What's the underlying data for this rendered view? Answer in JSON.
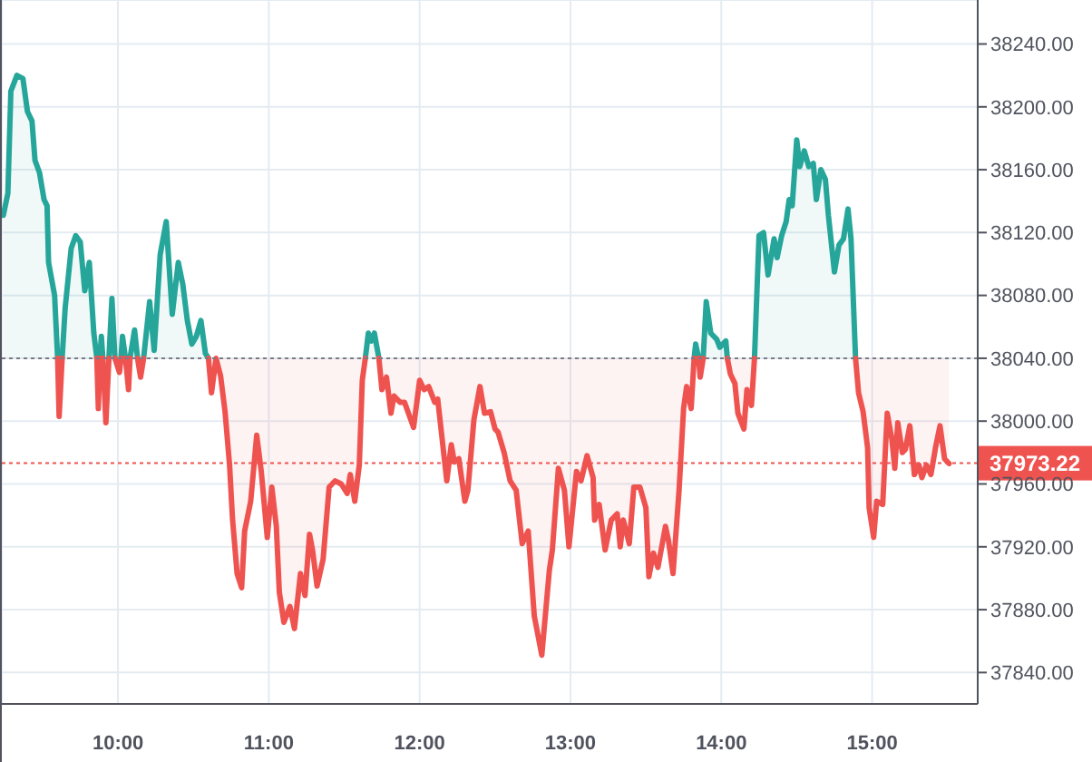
{
  "chart_data": {
    "type": "line",
    "x": [
      9.24,
      9.27,
      9.29,
      9.33,
      9.37,
      9.4,
      9.43,
      9.45,
      9.48,
      9.51,
      9.53,
      9.54,
      9.58,
      9.6,
      9.61,
      9.63,
      9.65,
      9.69,
      9.72,
      9.75,
      9.78,
      9.81,
      9.84,
      9.86,
      9.87,
      9.88,
      9.89,
      9.9,
      9.92,
      9.94,
      9.96,
      9.98,
      10.01,
      10.02,
      10.03,
      10.05,
      10.07,
      10.08,
      10.11,
      10.13,
      10.15,
      10.17,
      10.21,
      10.24,
      10.28,
      10.32,
      10.36,
      10.4,
      10.43,
      10.46,
      10.49,
      10.52,
      10.55,
      10.58,
      10.6,
      10.62,
      10.65,
      10.68,
      10.71,
      10.74,
      10.76,
      10.79,
      10.82,
      10.84,
      10.88,
      10.92,
      10.95,
      10.99,
      11.02,
      11.05,
      11.07,
      11.1,
      11.14,
      11.17,
      11.21,
      11.24,
      11.27,
      11.29,
      11.32,
      11.36,
      11.4,
      11.44,
      11.48,
      11.52,
      11.54,
      11.57,
      11.6,
      11.62,
      11.64,
      11.66,
      11.68,
      11.7,
      11.73,
      11.75,
      11.78,
      11.81,
      11.83,
      11.87,
      11.9,
      11.96,
      12.0,
      12.03,
      12.06,
      12.1,
      12.12,
      12.18,
      12.21,
      12.23,
      12.26,
      12.3,
      12.32,
      12.36,
      12.4,
      12.43,
      12.47,
      12.5,
      12.52,
      12.56,
      12.6,
      12.64,
      12.68,
      12.72,
      12.76,
      12.81,
      12.86,
      12.88,
      12.92,
      12.96,
      12.99,
      13.04,
      13.07,
      13.11,
      13.15,
      13.16,
      13.19,
      13.23,
      13.27,
      13.31,
      13.33,
      13.35,
      13.39,
      13.42,
      13.46,
      13.5,
      13.52,
      13.55,
      13.58,
      13.63,
      13.65,
      13.68,
      13.72,
      13.75,
      13.77,
      13.8,
      13.82,
      13.83,
      13.85,
      13.86,
      13.88,
      13.9,
      13.93,
      13.97,
      13.99,
      14.03,
      14.04,
      14.06,
      14.09,
      14.11,
      14.15,
      14.17,
      14.2,
      14.22,
      14.25,
      14.28,
      14.31,
      14.35,
      14.37,
      14.4,
      14.43,
      14.45,
      14.47,
      14.5,
      14.52,
      14.55,
      14.58,
      14.61,
      14.63,
      14.66,
      14.69,
      14.71,
      14.75,
      14.78,
      14.81,
      14.84,
      14.86,
      14.89,
      14.91,
      14.94,
      14.97,
      14.98,
      15.01,
      15.03,
      15.07,
      15.1,
      15.13,
      15.15,
      15.17,
      15.2,
      15.22,
      15.25,
      15.28,
      15.31,
      15.33,
      15.36,
      15.39,
      15.42,
      15.45,
      15.48,
      15.51
    ],
    "series": [
      {
        "color": "#26a69a",
        "values": [
          38131,
          38145,
          38210,
          38220,
          38218,
          38197,
          38191,
          38166,
          38158,
          38141,
          38137,
          38101,
          38080,
          38040,
          null,
          38040,
          38072,
          38110,
          38118,
          38114,
          38083,
          38101,
          38056,
          38040,
          null,
          38040,
          38054,
          38040,
          null,
          38040,
          38078,
          38040,
          null,
          38040,
          38054,
          38040,
          null,
          38040,
          38058,
          38040,
          null,
          38040,
          38076,
          38045,
          38106,
          38127,
          38068,
          38101,
          38087,
          38064,
          38049,
          38054,
          38064,
          38043,
          38040,
          null,
          null,
          null,
          null,
          null,
          null,
          null,
          null,
          null,
          null,
          null,
          null,
          null,
          null,
          null,
          null,
          null,
          null,
          null,
          null,
          null,
          null,
          null,
          null,
          null,
          null,
          null,
          null,
          null,
          null,
          null,
          null,
          null,
          38040,
          38056,
          38051,
          38056,
          38040,
          null,
          null,
          null,
          null,
          null,
          null,
          null,
          null,
          null,
          null,
          null,
          null,
          null,
          null,
          null,
          null,
          null,
          null,
          null,
          null,
          null,
          null,
          null,
          null,
          null,
          null,
          null,
          null,
          null,
          null,
          null,
          null,
          null,
          null,
          null,
          null,
          null,
          null,
          null,
          null,
          null,
          null,
          null,
          null,
          null,
          null,
          null,
          null,
          null,
          null,
          null,
          null,
          null,
          null,
          null,
          null,
          null,
          null,
          null,
          null,
          null,
          38040,
          38049,
          38040,
          null,
          38040,
          38076,
          38056,
          38052,
          38047,
          38051,
          38040,
          null,
          null,
          null,
          null,
          null,
          null,
          38040,
          38118,
          38120,
          38093,
          38116,
          38104,
          38118,
          38127,
          38141,
          38137,
          38179,
          38162,
          38172,
          38162,
          38164,
          38141,
          38160,
          38154,
          38131,
          38095,
          38112,
          38116,
          38135,
          38116,
          38040,
          null,
          null,
          null,
          null,
          null,
          null,
          null,
          null,
          null,
          null,
          null,
          null,
          null,
          null,
          null,
          null,
          null,
          null,
          null,
          null,
          null,
          null,
          null
        ],
        "lower": [
          38040,
          38040,
          38040,
          38040,
          38040,
          38040,
          38040,
          38040,
          38040,
          38040,
          38040,
          38040,
          38040,
          38040,
          null,
          38040,
          38040,
          38040,
          38040,
          38040,
          38040,
          38040,
          38040,
          38040,
          null,
          38040,
          38040,
          38040,
          null,
          38040,
          38040,
          38040,
          null,
          38040,
          38040,
          38040,
          null,
          38040,
          38040,
          38040,
          null,
          38040,
          38040,
          38040,
          38040,
          38040,
          38040,
          38040,
          38040,
          38040,
          38040,
          38040,
          38040,
          38040,
          38040,
          null,
          null,
          null,
          null,
          null,
          null,
          null,
          null,
          null,
          null,
          null,
          null,
          null,
          null,
          null,
          null,
          null,
          null,
          null,
          null,
          null,
          null,
          null,
          null,
          null,
          null,
          null,
          null,
          null,
          null,
          null,
          null,
          null,
          38040,
          38040,
          38040,
          38040,
          38040,
          null,
          null,
          null,
          null,
          null,
          null,
          null,
          null,
          null,
          null,
          null,
          null,
          null,
          null,
          null,
          null,
          null,
          null,
          null,
          null,
          null,
          null,
          null,
          null,
          null,
          null,
          null,
          null,
          null,
          null,
          null,
          null,
          null,
          null,
          null,
          null,
          null,
          null,
          null,
          null,
          null,
          null,
          null,
          null,
          null,
          null,
          null,
          null,
          null,
          null,
          null,
          null,
          null,
          null,
          null,
          null,
          null,
          null,
          null,
          null,
          null,
          null,
          null,
          null,
          null,
          38040,
          38040,
          38040,
          38040,
          38040,
          38040,
          38040,
          null,
          null,
          null,
          null,
          null,
          null,
          38040,
          38040,
          38040,
          38040,
          38040,
          38040,
          38040,
          38040,
          38040,
          38040,
          38040,
          38040,
          38040,
          38040,
          38040,
          38040,
          38040,
          38040,
          38040,
          38040,
          38040,
          38040,
          38040,
          38040,
          38040,
          null,
          null,
          null,
          null,
          null,
          null,
          null,
          null,
          null,
          null,
          null,
          null,
          null,
          null,
          null,
          null,
          null,
          null,
          null,
          null,
          null,
          null,
          null
        ],
        "upper": [
          38131,
          38145,
          38210,
          38220,
          38218,
          38197,
          38191,
          38166,
          38158,
          38141,
          38137,
          38101,
          38080,
          38040,
          null,
          38040,
          38072,
          38110,
          38118,
          38114,
          38083,
          38101,
          38056,
          38040,
          null,
          38040,
          38054,
          38040,
          null,
          38040,
          38078,
          38040,
          null,
          38040,
          38054,
          38040,
          null,
          38040,
          38058,
          38040,
          null,
          38040,
          38076,
          38045,
          38106,
          38127,
          38068,
          38101,
          38087,
          38064,
          38049,
          38054,
          38064,
          38043,
          38040,
          null,
          null,
          null,
          null,
          null,
          null,
          null,
          null,
          null,
          null,
          null,
          null,
          null,
          null,
          null,
          null,
          null,
          null,
          null,
          null,
          null,
          null,
          null,
          null,
          null,
          null,
          null,
          null,
          null,
          null,
          null,
          null,
          null,
          38040,
          38056,
          38051,
          38056,
          38040,
          null,
          null,
          null,
          null,
          null,
          null,
          null,
          null,
          null,
          null,
          null,
          null,
          null,
          null,
          null,
          null,
          null,
          null,
          null,
          null,
          null,
          null,
          null,
          null,
          null,
          null,
          null,
          null,
          null,
          null,
          null,
          null,
          null,
          null,
          null,
          null,
          null,
          null,
          null,
          null,
          null,
          null,
          null,
          null,
          null,
          null,
          null,
          null,
          null,
          null,
          null,
          null,
          null,
          null,
          null,
          null,
          null,
          null,
          null,
          null,
          null,
          null,
          null,
          null,
          null,
          38040,
          38076,
          38056,
          38052,
          38047,
          38051,
          38040,
          null,
          null,
          null,
          null,
          null,
          null,
          38040,
          38118,
          38120,
          38093,
          38116,
          38104,
          38118,
          38127,
          38141,
          38137,
          38179,
          38162,
          38172,
          38162,
          38164,
          38141,
          38160,
          38154,
          38131,
          38095,
          38112,
          38116,
          38135,
          38116,
          38040,
          null,
          null,
          null,
          null,
          null,
          null,
          null,
          null,
          null,
          null,
          null,
          null,
          null,
          null,
          null,
          null,
          null,
          null,
          null,
          null,
          null,
          null,
          null
        ]
      },
      {
        "color": "#ef5350",
        "values": [
          null,
          null,
          null,
          null,
          null,
          null,
          null,
          null,
          null,
          null,
          null,
          null,
          null,
          38040,
          38003,
          38040,
          null,
          null,
          null,
          null,
          null,
          null,
          null,
          38040,
          38008,
          38040,
          null,
          38040,
          37999,
          38040,
          null,
          38040,
          38031,
          38040,
          null,
          38040,
          38020,
          38040,
          null,
          38040,
          38028,
          38040,
          null,
          null,
          null,
          null,
          null,
          null,
          null,
          null,
          null,
          null,
          null,
          null,
          38040,
          38018,
          38040,
          38029,
          38006,
          37972,
          37937,
          37903,
          37894,
          37930,
          37949,
          37991,
          37968,
          37926,
          37958,
          37933,
          37891,
          37872,
          37882,
          37868,
          37903,
          37889,
          37928,
          37918,
          37895,
          37912,
          37958,
          37962,
          37960,
          37954,
          37966,
          37949,
          37972,
          38026,
          38040,
          null,
          null,
          null,
          38040,
          38020,
          38028,
          38005,
          38016,
          38012,
          38012,
          37996,
          38026,
          38020,
          38022,
          38012,
          38014,
          37962,
          37985,
          37974,
          37976,
          37949,
          37956,
          38001,
          38022,
          38005,
          38006,
          37995,
          37993,
          37980,
          37962,
          37956,
          37922,
          37930,
          37876,
          37851,
          37905,
          37918,
          37970,
          37956,
          37920,
          37968,
          37962,
          37978,
          37964,
          37937,
          37947,
          37918,
          37937,
          37941,
          37920,
          37937,
          37922,
          37958,
          37958,
          37945,
          37901,
          37916,
          37907,
          37933,
          37924,
          37903,
          37956,
          38008,
          38022,
          38008,
          38040,
          null,
          38040,
          38028,
          38040,
          null,
          null,
          null,
          null,
          null,
          38040,
          38030,
          38024,
          38005,
          37995,
          38020,
          38010,
          38040,
          null,
          null,
          null,
          null,
          null,
          null,
          null,
          null,
          null,
          null,
          null,
          null,
          null,
          null,
          null,
          null,
          null,
          null,
          null,
          null,
          null,
          null,
          null,
          38040,
          38018,
          38006,
          37983,
          37945,
          37926,
          37949,
          37947,
          38005,
          37989,
          37970,
          37999,
          37980,
          37982,
          37997,
          37966,
          37972,
          37964,
          37972,
          37966,
          37983,
          37997,
          37976,
          37973
        ],
        "lower": [
          null,
          null,
          null,
          null,
          null,
          null,
          null,
          null,
          null,
          null,
          null,
          null,
          null,
          38040,
          38003,
          38040,
          null,
          null,
          null,
          null,
          null,
          null,
          null,
          38040,
          38008,
          38040,
          null,
          38040,
          37999,
          38040,
          null,
          null,
          null,
          null,
          null,
          38040,
          38020,
          38040,
          null,
          38040,
          38028,
          38040,
          null,
          null,
          null,
          null,
          null,
          null,
          null,
          null,
          null,
          null,
          null,
          null,
          38040,
          38018,
          38040,
          38029,
          38006,
          37972,
          37937,
          37903,
          37894,
          37930,
          37949,
          37991,
          37968,
          37926,
          37958,
          37933,
          37891,
          37872,
          37882,
          37868,
          37903,
          37889,
          37928,
          37918,
          37895,
          37912,
          37958,
          37962,
          37960,
          37954,
          37966,
          37949,
          37972,
          38026,
          38040,
          null,
          null,
          null,
          38040,
          38020,
          38028,
          38005,
          38016,
          38012,
          38012,
          37996,
          38026,
          38020,
          38022,
          38012,
          38014,
          37962,
          37985,
          37974,
          37976,
          37949,
          37956,
          38001,
          38022,
          38005,
          38006,
          37995,
          37993,
          37980,
          37962,
          37956,
          37922,
          37930,
          37876,
          37851,
          37905,
          37918,
          37970,
          37956,
          37920,
          37968,
          37962,
          37978,
          37964,
          37937,
          37947,
          37918,
          37937,
          37941,
          37920,
          37937,
          37922,
          37958,
          37958,
          37945,
          37901,
          37916,
          37907,
          37933,
          37924,
          37903,
          37956,
          38008,
          38022,
          38008,
          38040,
          null,
          38040,
          38028,
          38040,
          null,
          null,
          null,
          null,
          null,
          38040,
          38030,
          38024,
          38005,
          37995,
          38020,
          38010,
          38040,
          null,
          null,
          null,
          null,
          null,
          null,
          null,
          null,
          null,
          null,
          null,
          null,
          null,
          null,
          null,
          null,
          null,
          null,
          null,
          null,
          null,
          null,
          null,
          38040,
          38018,
          38006,
          37983,
          37945,
          37926,
          37949,
          37947,
          38005,
          37989,
          37970,
          37999,
          37980,
          37982,
          37997,
          37966,
          37972,
          37964,
          37972,
          37966,
          37983,
          37997,
          37976,
          37973
        ],
        "upper": [
          null,
          null,
          null,
          null,
          null,
          null,
          null,
          null,
          null,
          null,
          null,
          null,
          null,
          38040,
          38040,
          38040,
          null,
          null,
          null,
          null,
          null,
          null,
          null,
          38040,
          38040,
          38040,
          null,
          38040,
          38040,
          38040,
          null,
          null,
          null,
          null,
          null,
          38040,
          38040,
          38040,
          null,
          38040,
          38040,
          38040,
          null,
          null,
          null,
          null,
          null,
          null,
          null,
          null,
          null,
          null,
          null,
          null,
          38040,
          38040,
          38040,
          38040,
          38040,
          38040,
          38040,
          38040,
          38040,
          38040,
          38040,
          38040,
          38040,
          38040,
          38040,
          38040,
          38040,
          38040,
          38040,
          38040,
          38040,
          38040,
          38040,
          38040,
          38040,
          38040,
          38040,
          38040,
          38040,
          38040,
          38040,
          38040,
          38040,
          38040,
          38040,
          null,
          null,
          null,
          38040,
          38040,
          38040,
          38040,
          38040,
          38040,
          38040,
          38040,
          38040,
          38040,
          38040,
          38040,
          38040,
          38040,
          38040,
          38040,
          38040,
          38040,
          38040,
          38040,
          38040,
          38040,
          38040,
          38040,
          38040,
          38040,
          38040,
          38040,
          38040,
          38040,
          38040,
          38040,
          38040,
          38040,
          38040,
          38040,
          38040,
          38040,
          38040,
          38040,
          38040,
          38040,
          38040,
          38040,
          38040,
          38040,
          38040,
          38040,
          38040,
          38040,
          38040,
          38040,
          38040,
          38040,
          38040,
          38040,
          38040,
          38040,
          38040,
          38040,
          38040,
          38040,
          38040,
          null,
          38040,
          38040,
          38040,
          null,
          null,
          null,
          null,
          null,
          38040,
          38040,
          38040,
          38040,
          38040,
          38040,
          38040,
          38040,
          null,
          null,
          null,
          null,
          null,
          null,
          null,
          null,
          null,
          null,
          null,
          null,
          null,
          null,
          null,
          null,
          null,
          null,
          null,
          null,
          null,
          null,
          null,
          38040,
          38040,
          38040,
          38040,
          38040,
          38040,
          38040,
          38040,
          38040,
          38040,
          38040,
          38040,
          38040,
          38040,
          38040,
          38040,
          38040,
          38040,
          38040,
          38040,
          38040,
          38040,
          38040,
          38040
        ]
      }
    ],
    "xlim": [
      9.23,
      15.7
    ],
    "xticks": [
      {
        "value": 10,
        "label": "10:00"
      },
      {
        "value": 11,
        "label": "11:00"
      },
      {
        "value": 12,
        "label": "12:00"
      },
      {
        "value": 13,
        "label": "13:00"
      },
      {
        "value": 14,
        "label": "14:00"
      },
      {
        "value": 15,
        "label": "15:00"
      }
    ],
    "ylim": [
      37820,
      38268
    ],
    "yticks": [
      {
        "value": 37840,
        "label": "37840.00"
      },
      {
        "value": 37880,
        "label": "37880.00"
      },
      {
        "value": 37920,
        "label": "37920.00"
      },
      {
        "value": 37960,
        "label": "37960.00"
      },
      {
        "value": 38000,
        "label": "38000.00"
      },
      {
        "value": 38040,
        "label": "38040.00"
      },
      {
        "value": 38080,
        "label": "38080.00"
      },
      {
        "value": 38120,
        "label": "38120.00"
      },
      {
        "value": 38160,
        "label": "38160.00"
      },
      {
        "value": 38200,
        "label": "38200.00"
      },
      {
        "value": 38240,
        "label": "38240.00"
      }
    ],
    "grid": true,
    "ref_lines": [
      {
        "axis": "y",
        "value": 38040,
        "line_style": "dotted",
        "color": "#787b86"
      },
      {
        "axis": "y",
        "value": 37973.22,
        "label": "37973.22",
        "line_style": "dotted",
        "color": "#ef5350"
      }
    ]
  }
}
